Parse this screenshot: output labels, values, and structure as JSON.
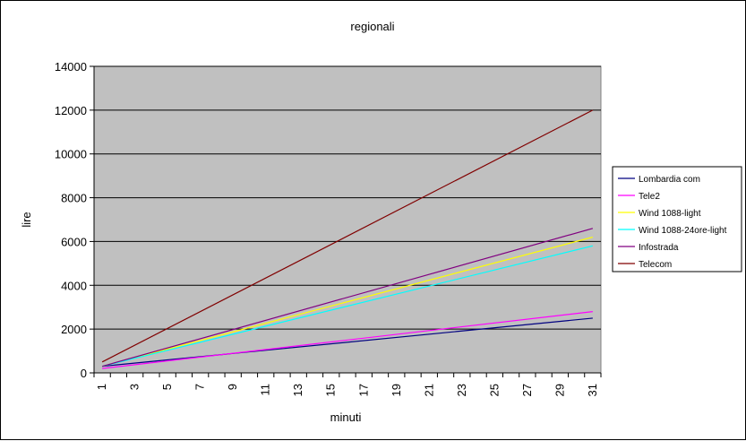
{
  "chart_data": {
    "type": "line",
    "title": "regionali",
    "xlabel": "minuti",
    "ylabel": "lire",
    "ylim": [
      0,
      14000
    ],
    "yticks": [
      "0",
      "2000",
      "4000",
      "6000",
      "8000",
      "10000",
      "12000",
      "14000"
    ],
    "x": [
      1,
      31
    ],
    "xtick_labels": [
      "1",
      "3",
      "5",
      "7",
      "9",
      "11",
      "13",
      "15",
      "17",
      "19",
      "21",
      "23",
      "25",
      "27",
      "29",
      "31"
    ],
    "grid": "horizontal",
    "legend_position": "right",
    "plot_background": "#c0c0c0",
    "series": [
      {
        "name": "Lombardia com",
        "color": "#000080",
        "values": [
          300,
          2500
        ]
      },
      {
        "name": "Tele2",
        "color": "#ff00ff",
        "values": [
          200,
          2800
        ]
      },
      {
        "name": "Wind 1088-light",
        "color": "#ffff00",
        "values": [
          300,
          6200
        ]
      },
      {
        "name": "Wind 1088-24ore-light",
        "color": "#00ffff",
        "values": [
          300,
          5800
        ]
      },
      {
        "name": "Infostrada",
        "color": "#800080",
        "values": [
          300,
          6600
        ]
      },
      {
        "name": "Telecom",
        "color": "#800000",
        "values": [
          500,
          12000
        ]
      }
    ]
  }
}
